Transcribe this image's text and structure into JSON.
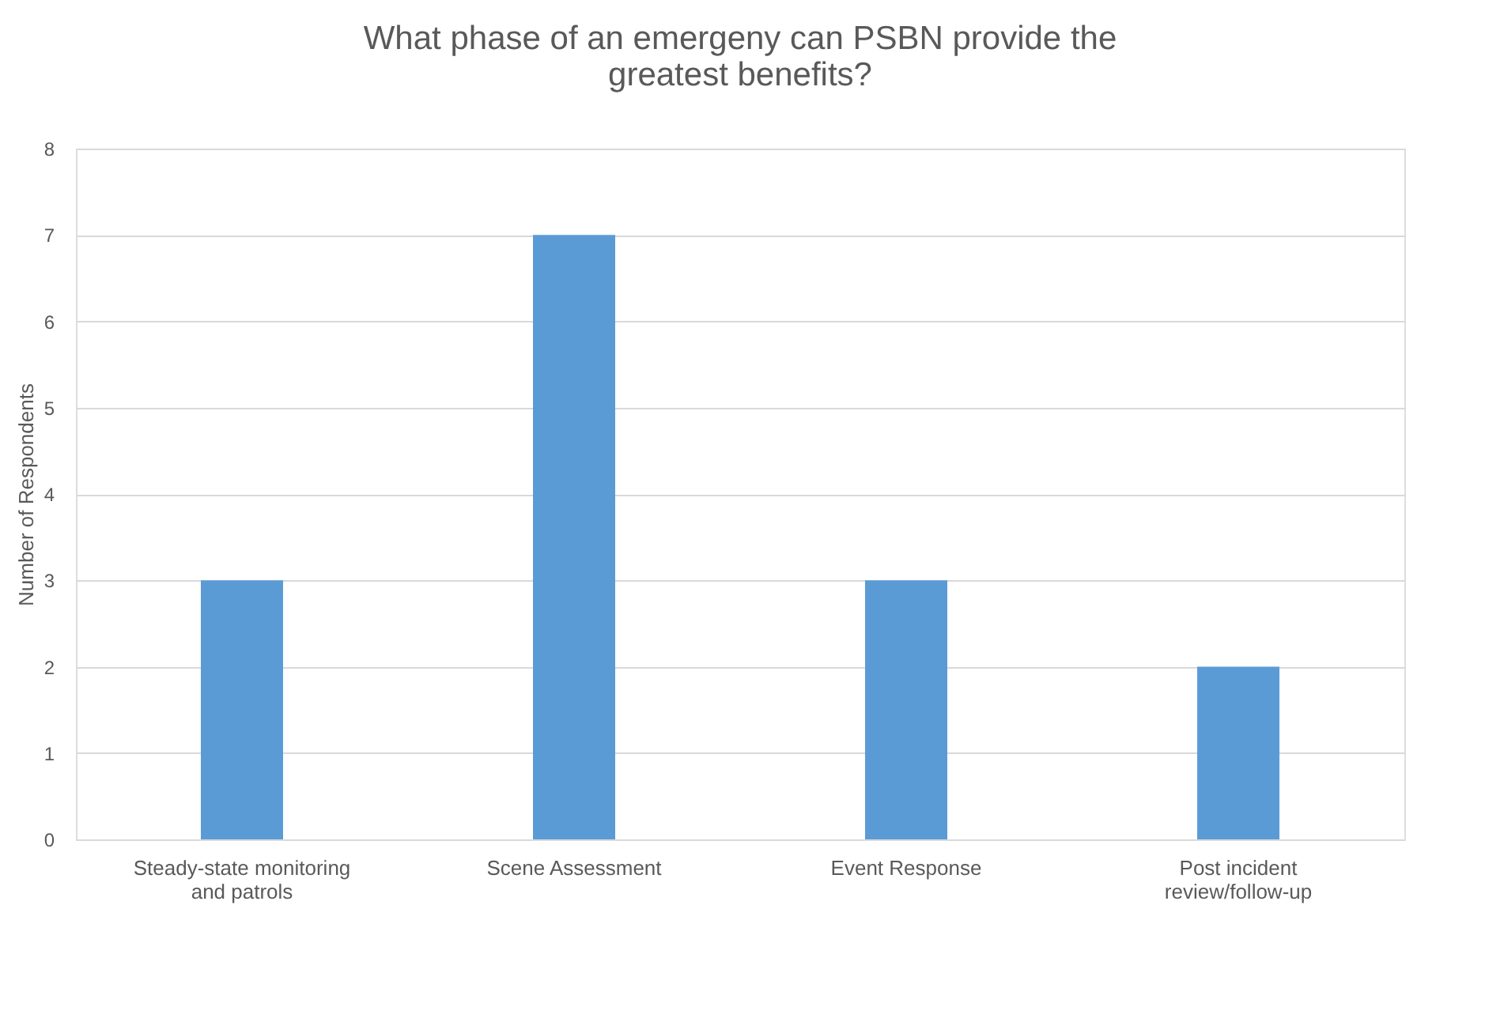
{
  "chart_data": {
    "type": "bar",
    "title": "What phase of an emergeny can PSBN provide the greatest benefits?",
    "ylabel": "Number of Respondents",
    "categories": [
      "Steady-state monitoring and patrols",
      "Scene Assessment",
      "Event Response",
      "Post incident review/follow-up"
    ],
    "values": [
      3,
      7,
      3,
      2
    ],
    "color": "#5b9bd5",
    "ylim": [
      0,
      8
    ],
    "yticks": [
      0,
      1,
      2,
      3,
      4,
      5,
      6,
      7,
      8
    ],
    "grid": "y"
  }
}
